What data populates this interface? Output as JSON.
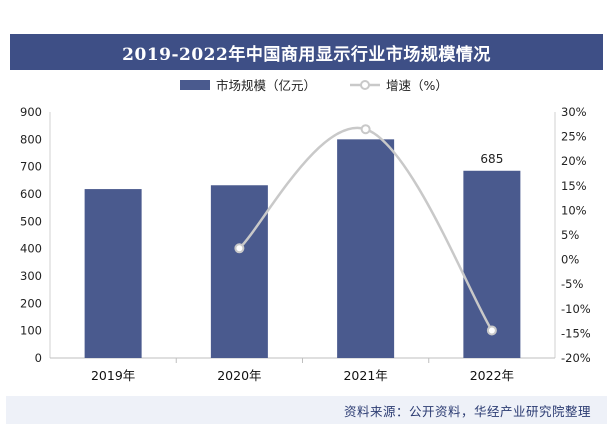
{
  "title": "2019-2022年中国商用显示行业市场规模情况",
  "source": "资料来源：公开资料，华经产业研究院整理",
  "colors": {
    "bar": "#4a5a8e",
    "line": "#c9c9c9",
    "marker_fill": "#ffffff",
    "title_bg": "#3e4f86"
  },
  "chart_data": {
    "type": "bar",
    "categories": [
      "2019年",
      "2020年",
      "2021年",
      "2022年"
    ],
    "series": [
      {
        "name": "市场规模（亿元）",
        "type": "bar",
        "axis": "left",
        "values": [
          618,
          632,
          800,
          685
        ]
      },
      {
        "name": "增速（%）",
        "type": "line",
        "axis": "right",
        "values": [
          null,
          2.3,
          26.5,
          -14.4
        ]
      }
    ],
    "data_labels": [
      {
        "series": 0,
        "index": 3,
        "text": "685"
      }
    ],
    "y_left": {
      "ylim": [
        0,
        900
      ],
      "ticks": [
        "0",
        "100",
        "200",
        "300",
        "400",
        "500",
        "600",
        "700",
        "800",
        "900"
      ]
    },
    "y_right": {
      "ylim": [
        -20,
        30
      ],
      "ticks": [
        "-20%",
        "-15%",
        "-10%",
        "-5%",
        "0%",
        "5%",
        "10%",
        "15%",
        "20%",
        "25%",
        "30%"
      ]
    },
    "legend": {
      "placement": "top-center"
    },
    "grid": false
  }
}
